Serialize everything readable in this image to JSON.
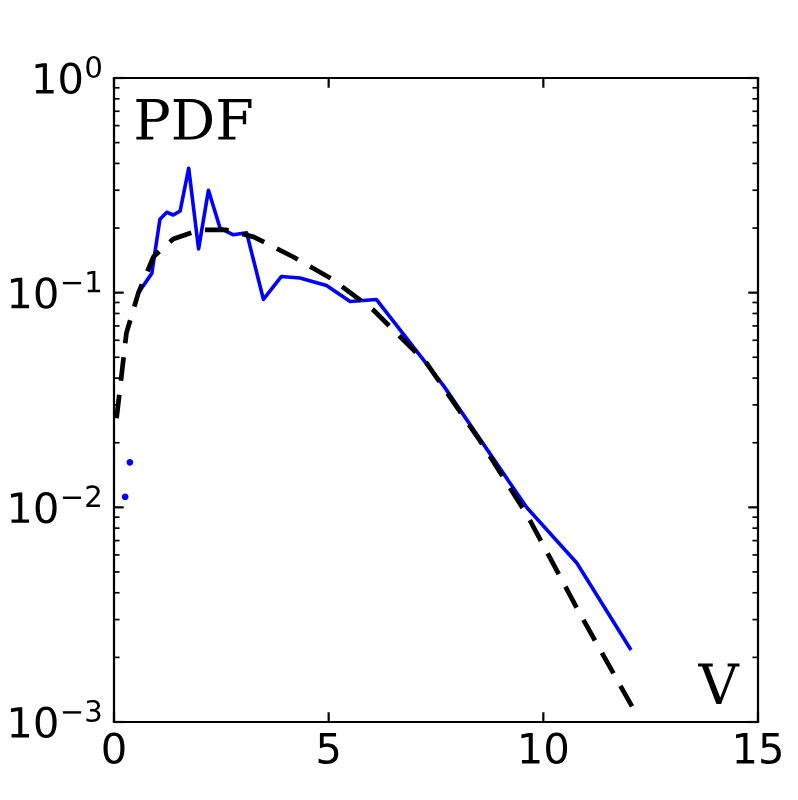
{
  "chart_data": {
    "type": "line",
    "log": "y",
    "xlim": [
      0,
      15
    ],
    "ylim": [
      0.001,
      1
    ],
    "xticks": [
      0,
      5,
      10,
      15
    ],
    "yticks": [
      {
        "value": 0.001,
        "label": "10$^{−3}$"
      },
      {
        "value": 0.01,
        "label": "10$^{−2}$"
      },
      {
        "value": 0.1,
        "label": "10$^{−1}$"
      },
      {
        "value": 1,
        "label": "10$^{0}$"
      }
    ],
    "grid": false,
    "annotations": [
      "PDF",
      "V"
    ],
    "series": [
      {
        "type": "scatter",
        "color": "#0000ff",
        "x": [
          0.26,
          0.37
        ],
        "values": [
          0.0112,
          0.0162
        ]
      },
      {
        "color": "#0000ff",
        "line_style": "solid",
        "x": [
          0.57,
          0.88,
          1.07,
          1.23,
          1.38,
          1.54,
          1.74,
          1.97,
          2.2,
          2.47,
          2.78,
          3.09,
          3.48,
          3.9,
          4.33,
          4.95,
          5.5,
          6.11,
          7.67,
          9.61,
          10.78,
          12.02
        ],
        "values": [
          0.1,
          0.123,
          0.22,
          0.237,
          0.23,
          0.24,
          0.38,
          0.16,
          0.3,
          0.2,
          0.186,
          0.19,
          0.093,
          0.119,
          0.117,
          0.108,
          0.091,
          0.093,
          0.037,
          0.01,
          0.0055,
          0.0022
        ]
      },
      {
        "color": "#000000",
        "line_style": "dashed",
        "x": [
          0.06,
          0.29,
          0.57,
          0.92,
          1.38,
          2.0,
          2.62,
          3.25,
          4.17,
          5.1,
          6.04,
          7.28,
          8.52,
          9.61,
          10.85,
          12.21
        ],
        "values": [
          0.026,
          0.065,
          0.1,
          0.147,
          0.178,
          0.196,
          0.196,
          0.182,
          0.147,
          0.115,
          0.083,
          0.047,
          0.0205,
          0.0093,
          0.0032,
          0.00105
        ]
      }
    ]
  }
}
